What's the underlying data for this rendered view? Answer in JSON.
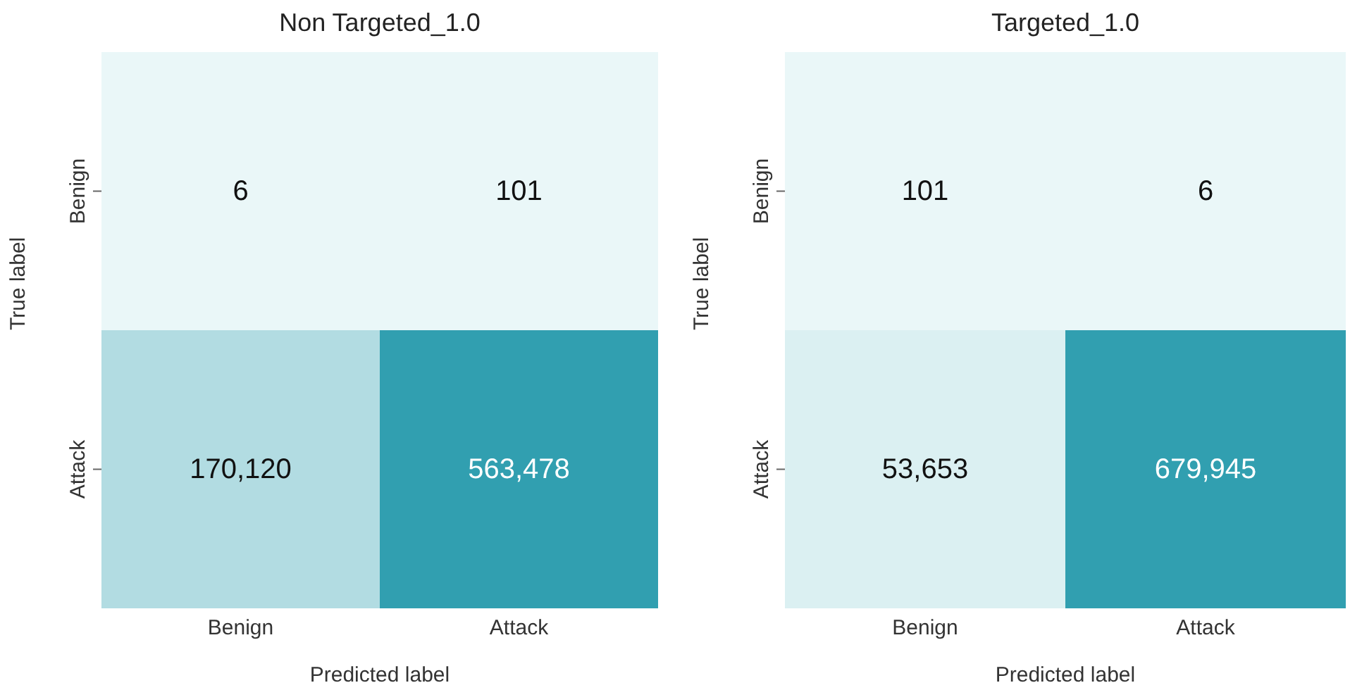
{
  "chart_data": [
    {
      "type": "heatmap",
      "title": "Non Targeted_1.0",
      "xlabel": "Predicted label",
      "ylabel": "True label",
      "categories": [
        "Benign",
        "Attack"
      ],
      "y_categories": [
        "Benign",
        "Attack"
      ],
      "cells": [
        [
          6,
          101
        ],
        [
          170120,
          563478
        ]
      ],
      "cell_labels": [
        [
          "6",
          "101"
        ],
        [
          "170,120",
          "563,478"
        ]
      ]
    },
    {
      "type": "heatmap",
      "title": "Targeted_1.0",
      "xlabel": "Predicted label",
      "ylabel": "True label",
      "categories": [
        "Benign",
        "Attack"
      ],
      "y_categories": [
        "Benign",
        "Attack"
      ],
      "cells": [
        [
          101,
          6
        ],
        [
          53653,
          679945
        ]
      ],
      "cell_labels": [
        [
          "101",
          "6"
        ],
        [
          "53,653",
          "679,945"
        ]
      ]
    }
  ]
}
